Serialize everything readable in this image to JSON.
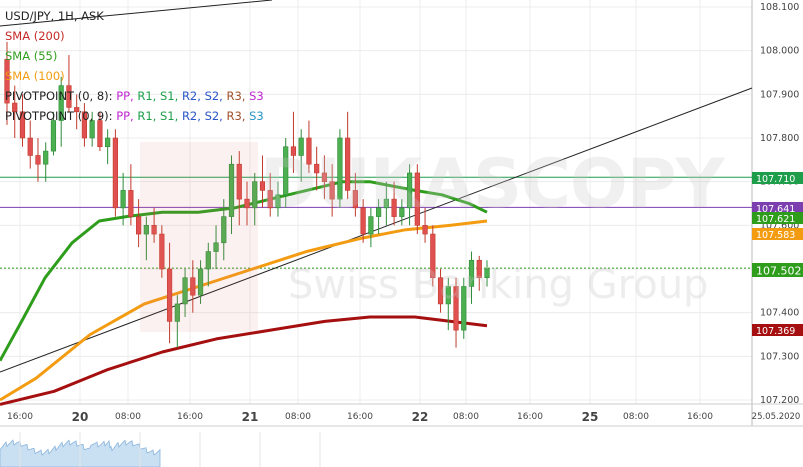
{
  "chart_data": {
    "type": "candlestick",
    "legend": [
      {
        "text": "USD/JPY, 1H, ASK",
        "color": "#222222"
      },
      {
        "text": "SMA (200)",
        "color": "#c62828"
      },
      {
        "text": "SMA (55)",
        "color": "#2e9d1c"
      },
      {
        "text": "SMA (100)",
        "color": "#f39c12"
      },
      {
        "text": "PIVOTPOINT (0, 8):",
        "color": "#222222",
        "items": [
          {
            "text": "PP",
            "color": "#c026d3"
          },
          {
            "text": "R1",
            "color": "#1e9e4a"
          },
          {
            "text": "S1",
            "color": "#1e9e4a"
          },
          {
            "text": "R2",
            "color": "#2855c6"
          },
          {
            "text": "S2",
            "color": "#2855c6"
          },
          {
            "text": "R3",
            "color": "#a0522d"
          },
          {
            "text": "S3",
            "color": "#c026d3"
          }
        ]
      },
      {
        "text": "PIVOTPOINT (0, 9):",
        "color": "#222222",
        "items": [
          {
            "text": "PP",
            "color": "#c026d3"
          },
          {
            "text": "R1",
            "color": "#1e9e4a"
          },
          {
            "text": "S1",
            "color": "#1e9e4a"
          },
          {
            "text": "R2",
            "color": "#2855c6"
          },
          {
            "text": "S2",
            "color": "#2855c6"
          },
          {
            "text": "R3",
            "color": "#a0522d"
          },
          {
            "text": "S3",
            "color": "#2894c6"
          }
        ]
      }
    ],
    "y_ticks": [
      "108.100",
      "108.000",
      "107.900",
      "107.800",
      "107.700",
      "107.600",
      "107.500",
      "107.400",
      "107.300",
      "107.200"
    ],
    "ylim": [
      107.2,
      108.1
    ],
    "x_ticks": [
      {
        "label": "16:00",
        "bold": false
      },
      {
        "label": "20",
        "bold": true
      },
      {
        "label": "08:00",
        "bold": false
      },
      {
        "label": "16:00",
        "bold": false
      },
      {
        "label": "21",
        "bold": true
      },
      {
        "label": "08:00",
        "bold": false
      },
      {
        "label": "16:00",
        "bold": false
      },
      {
        "label": "22",
        "bold": true
      },
      {
        "label": "08:00",
        "bold": false
      },
      {
        "label": "16:00",
        "bold": false
      },
      {
        "label": "25",
        "bold": true
      },
      {
        "label": "08:00",
        "bold": false
      },
      {
        "label": "16:00",
        "bold": false
      },
      {
        "label": "25.05.2020",
        "bold": false
      }
    ],
    "price_labels": [
      {
        "text": "107.710",
        "value": 107.71,
        "bg": "#1e9e4a"
      },
      {
        "text": "107.641",
        "value": 107.641,
        "bg": "#7b3fb0"
      },
      {
        "text": "107.621",
        "value": 107.621,
        "bg": "#2e9d1c"
      },
      {
        "text": "107.583",
        "value": 107.583,
        "bg": "#f39c12"
      },
      {
        "text": "107.502",
        "value": 107.502,
        "bg": "#2e9d1c"
      },
      {
        "text": "107.369",
        "value": 107.369,
        "bg": "#a50f0f"
      }
    ],
    "hlines": [
      {
        "value": 107.71,
        "color": "#1e9e4a",
        "style": "solid"
      },
      {
        "value": 107.641,
        "color": "#7b3fb0",
        "style": "solid"
      },
      {
        "value": 107.502,
        "color": "#2e9d1c",
        "style": "dotted"
      }
    ],
    "candles": [
      [
        107.98,
        108.02,
        107.83,
        107.88
      ],
      [
        107.88,
        107.92,
        107.8,
        107.86
      ],
      [
        107.86,
        107.9,
        107.78,
        107.8
      ],
      [
        107.8,
        107.84,
        107.73,
        107.76
      ],
      [
        107.76,
        107.8,
        107.7,
        107.74
      ],
      [
        107.74,
        107.79,
        107.7,
        107.77
      ],
      [
        107.77,
        107.86,
        107.76,
        107.84
      ],
      [
        107.84,
        107.94,
        107.78,
        107.92
      ],
      [
        107.92,
        107.99,
        107.86,
        107.87
      ],
      [
        107.87,
        107.9,
        107.82,
        107.86
      ],
      [
        107.86,
        107.88,
        107.78,
        107.8
      ],
      [
        107.8,
        107.86,
        107.78,
        107.84
      ],
      [
        107.84,
        107.86,
        107.77,
        107.78
      ],
      [
        107.78,
        107.82,
        107.74,
        107.8
      ],
      [
        107.8,
        107.82,
        107.62,
        107.64
      ],
      [
        107.64,
        107.72,
        107.6,
        107.68
      ],
      [
        107.68,
        107.74,
        107.6,
        107.62
      ],
      [
        107.62,
        107.66,
        107.55,
        107.58
      ],
      [
        107.58,
        107.62,
        107.52,
        107.6
      ],
      [
        107.6,
        107.64,
        107.56,
        107.58
      ],
      [
        107.58,
        107.6,
        107.48,
        107.5
      ],
      [
        107.5,
        107.56,
        107.33,
        107.38
      ],
      [
        107.38,
        107.44,
        107.32,
        107.42
      ],
      [
        107.42,
        107.5,
        107.39,
        107.48
      ],
      [
        107.48,
        107.52,
        107.4,
        107.44
      ],
      [
        107.44,
        107.52,
        107.42,
        107.5
      ],
      [
        107.5,
        107.56,
        107.46,
        107.54
      ],
      [
        107.54,
        107.6,
        107.5,
        107.56
      ],
      [
        107.56,
        107.66,
        107.52,
        107.62
      ],
      [
        107.62,
        107.76,
        107.58,
        107.74
      ],
      [
        107.74,
        107.77,
        107.6,
        107.66
      ],
      [
        107.66,
        107.7,
        107.6,
        107.64
      ],
      [
        107.64,
        107.72,
        107.6,
        107.7
      ],
      [
        107.7,
        107.76,
        107.64,
        107.68
      ],
      [
        107.68,
        107.72,
        107.62,
        107.64
      ],
      [
        107.64,
        107.7,
        107.62,
        107.67
      ],
      [
        107.67,
        107.8,
        107.64,
        107.78
      ],
      [
        107.78,
        107.86,
        107.72,
        107.76
      ],
      [
        107.76,
        107.82,
        107.7,
        107.8
      ],
      [
        107.8,
        107.84,
        107.72,
        107.74
      ],
      [
        107.74,
        107.78,
        107.68,
        107.72
      ],
      [
        107.72,
        107.76,
        107.66,
        107.7
      ],
      [
        107.7,
        107.74,
        107.62,
        107.66
      ],
      [
        107.66,
        107.82,
        107.64,
        107.8
      ],
      [
        107.8,
        107.86,
        107.66,
        107.68
      ],
      [
        107.68,
        107.72,
        107.62,
        107.64
      ],
      [
        107.64,
        107.66,
        107.56,
        107.58
      ],
      [
        107.58,
        107.64,
        107.55,
        107.62
      ],
      [
        107.62,
        107.66,
        107.58,
        107.64
      ],
      [
        107.64,
        107.7,
        107.6,
        107.66
      ],
      [
        107.66,
        107.7,
        107.6,
        107.62
      ],
      [
        107.62,
        107.66,
        107.6,
        107.64
      ],
      [
        107.64,
        107.74,
        107.6,
        107.72
      ],
      [
        107.72,
        107.74,
        107.58,
        107.6
      ],
      [
        107.6,
        107.64,
        107.56,
        107.58
      ],
      [
        107.58,
        107.6,
        107.46,
        107.48
      ],
      [
        107.48,
        107.5,
        107.4,
        107.42
      ],
      [
        107.42,
        107.48,
        107.36,
        107.46
      ],
      [
        107.46,
        107.48,
        107.32,
        107.36
      ],
      [
        107.36,
        107.48,
        107.34,
        107.46
      ],
      [
        107.46,
        107.54,
        107.42,
        107.52
      ],
      [
        107.52,
        107.53,
        107.45,
        107.48
      ],
      [
        107.48,
        107.52,
        107.46,
        107.5
      ]
    ],
    "sma55": [
      [
        0,
        107.29
      ],
      [
        12,
        107.38
      ],
      [
        25,
        107.48
      ],
      [
        40,
        107.56
      ],
      [
        55,
        107.61
      ],
      [
        70,
        107.62
      ],
      [
        90,
        107.63
      ],
      [
        110,
        107.63
      ],
      [
        130,
        107.64
      ],
      [
        150,
        107.66
      ],
      [
        170,
        107.68
      ],
      [
        190,
        107.7
      ],
      [
        205,
        107.7
      ],
      [
        230,
        107.68
      ],
      [
        245,
        107.67
      ],
      [
        260,
        107.65
      ],
      [
        270,
        107.63
      ]
    ],
    "sma100": [
      [
        0,
        107.2
      ],
      [
        20,
        107.25
      ],
      [
        50,
        107.35
      ],
      [
        80,
        107.42
      ],
      [
        110,
        107.46
      ],
      [
        140,
        107.5
      ],
      [
        170,
        107.54
      ],
      [
        200,
        107.57
      ],
      [
        225,
        107.59
      ],
      [
        250,
        107.6
      ],
      [
        270,
        107.61
      ]
    ],
    "sma200": [
      [
        0,
        107.19
      ],
      [
        30,
        107.22
      ],
      [
        60,
        107.27
      ],
      [
        90,
        107.31
      ],
      [
        120,
        107.34
      ],
      [
        150,
        107.36
      ],
      [
        180,
        107.38
      ],
      [
        205,
        107.39
      ],
      [
        230,
        107.39
      ],
      [
        250,
        107.38
      ],
      [
        270,
        107.37
      ]
    ]
  }
}
